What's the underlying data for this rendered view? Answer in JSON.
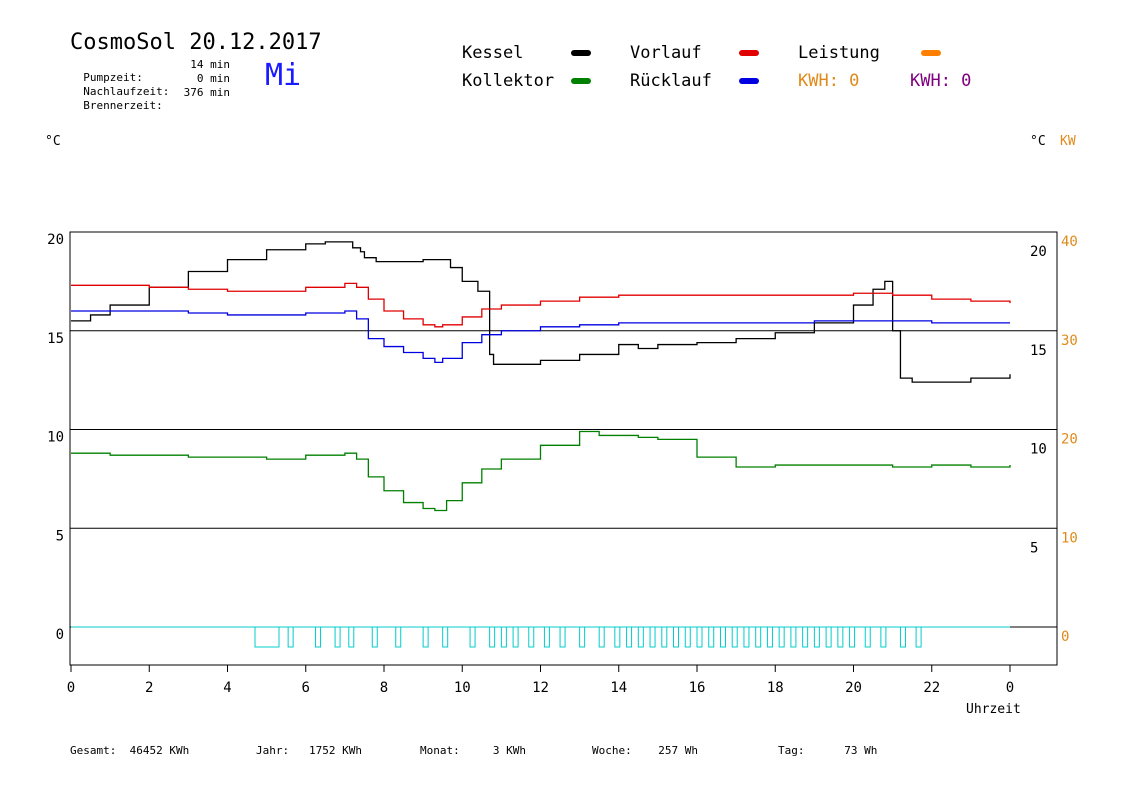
{
  "header": {
    "title": "CosmoSol 20.12.2017",
    "weekday": "Mi",
    "pump_label": "Pumpzeit:",
    "pump_value": "14 min",
    "nachlauf_label": "Nachlaufzeit:",
    "nachlauf_value": "0 min",
    "brenner_label": "Brennerzeit:",
    "brenner_value": "376 min"
  },
  "legend": {
    "kessel": "Kessel",
    "kollektor": "Kollektor",
    "vorlauf": "Vorlauf",
    "ruecklauf": "Rücklauf",
    "leistung": "Leistung",
    "kwh1": "KWH: 0",
    "kwh2": "KWH: 0",
    "colors": {
      "kessel": "#000000",
      "kollektor": "#008000",
      "vorlauf": "#e00000",
      "ruecklauf": "#0000e0",
      "leistung": "#ff8000",
      "kwh1": "#e08a1a",
      "kwh2": "#800080"
    }
  },
  "units": {
    "left": "°C",
    "right": "°C",
    "right_kw": "KW",
    "x_unit": "Uhrzeit"
  },
  "footer": {
    "gesamt_label": "Gesamt:",
    "gesamt_value": "46452 KWh",
    "jahr_label": "Jahr:",
    "jahr_value": "1752 KWh",
    "monat_label": "Monat:",
    "monat_value": "3 KWh",
    "woche_label": "Woche:",
    "woche_value": "257 Wh",
    "tag_label": "Tag:",
    "tag_value": "73 Wh"
  },
  "chart_data": {
    "type": "line",
    "title": "CosmoSol 20.12.2017",
    "xlabel": "Uhrzeit",
    "ylabel": "°C",
    "x_ticks": [
      "0",
      "2",
      "4",
      "6",
      "8",
      "10",
      "12",
      "14",
      "16",
      "18",
      "20",
      "22",
      "0"
    ],
    "xlim": [
      0,
      24
    ],
    "y_left": {
      "ticks": [
        "20",
        "15",
        "10",
        "5",
        "0"
      ],
      "ylim": [
        -1.5,
        20.5
      ]
    },
    "y_right_temp": {
      "ticks": [
        "20",
        "15",
        "10",
        "5"
      ]
    },
    "y_right_kw": {
      "ticks": [
        "40",
        "30",
        "20",
        "10",
        "0"
      ]
    },
    "series": [
      {
        "name": "Kessel",
        "color": "#000000",
        "x": [
          0,
          0.5,
          1,
          2,
          3,
          4,
          5,
          6,
          6.5,
          7,
          7.2,
          7.4,
          7.5,
          7.8,
          8,
          8.5,
          9,
          9.5,
          9.7,
          10,
          10.4,
          10.5,
          10.7,
          10.8,
          11,
          12,
          13,
          14,
          14.5,
          15,
          16,
          17,
          18,
          19,
          20,
          20.5,
          20.8,
          21,
          21.2,
          21.5,
          22,
          23,
          24
        ],
        "y": [
          15.5,
          15.8,
          16.3,
          17.2,
          18,
          18.6,
          19.1,
          19.4,
          19.5,
          19.5,
          19.2,
          19,
          18.7,
          18.5,
          18.5,
          18.5,
          18.6,
          18.6,
          18.2,
          17.5,
          17,
          17,
          13.8,
          13.3,
          13.3,
          13.5,
          13.8,
          14.3,
          14.1,
          14.3,
          14.4,
          14.6,
          14.9,
          15.4,
          16.3,
          17.1,
          17.5,
          15,
          12.6,
          12.4,
          12.4,
          12.6,
          12.8
        ]
      },
      {
        "name": "Vorlauf",
        "color": "#e00000",
        "x": [
          0,
          1,
          2,
          3,
          4,
          5,
          6,
          7,
          7.3,
          7.6,
          8,
          8.5,
          9,
          9.3,
          9.5,
          10,
          10.5,
          11,
          12,
          13,
          14,
          15,
          16,
          17,
          18,
          19,
          20,
          20.5,
          21,
          22,
          23,
          24
        ],
        "y": [
          17.3,
          17.3,
          17.2,
          17.1,
          17,
          17,
          17.2,
          17.4,
          17.2,
          16.6,
          16,
          15.6,
          15.3,
          15.2,
          15.3,
          15.7,
          16.1,
          16.3,
          16.5,
          16.7,
          16.8,
          16.8,
          16.8,
          16.8,
          16.8,
          16.8,
          16.9,
          16.9,
          16.8,
          16.6,
          16.5,
          16.4
        ]
      },
      {
        "name": "Rücklauf",
        "color": "#0000e0",
        "x": [
          0,
          1,
          2,
          3,
          4,
          5,
          6,
          7,
          7.3,
          7.6,
          8,
          8.5,
          9,
          9.3,
          9.5,
          10,
          10.5,
          11,
          12,
          13,
          14,
          15,
          16,
          17,
          18,
          19,
          20,
          21,
          22,
          23,
          24
        ],
        "y": [
          16,
          16,
          16,
          15.9,
          15.8,
          15.8,
          15.9,
          16,
          15.6,
          14.6,
          14.2,
          13.9,
          13.6,
          13.4,
          13.6,
          14.4,
          14.8,
          15,
          15.2,
          15.3,
          15.4,
          15.4,
          15.4,
          15.4,
          15.4,
          15.5,
          15.5,
          15.5,
          15.4,
          15.4,
          15.4
        ]
      },
      {
        "name": "Kollektor",
        "color": "#008000",
        "x": [
          0,
          1,
          2,
          3,
          4,
          5,
          6,
          7,
          7.3,
          7.6,
          8,
          8.5,
          9,
          9.3,
          9.6,
          10,
          10.5,
          11,
          12,
          13,
          13.5,
          14,
          14.5,
          15,
          16,
          17,
          18,
          19,
          20,
          21,
          22,
          23,
          24
        ],
        "y": [
          8.8,
          8.7,
          8.7,
          8.6,
          8.6,
          8.5,
          8.7,
          8.8,
          8.5,
          7.6,
          6.9,
          6.3,
          6,
          5.9,
          6.4,
          7.3,
          8,
          8.5,
          9.2,
          9.9,
          9.7,
          9.7,
          9.6,
          9.5,
          8.6,
          8.1,
          8.2,
          8.2,
          8.2,
          8.1,
          8.2,
          8.1,
          8.2
        ]
      },
      {
        "name": "Leistung",
        "color": "#ff8000",
        "x": [
          0,
          24
        ],
        "y": [
          0,
          0
        ]
      }
    ]
  }
}
